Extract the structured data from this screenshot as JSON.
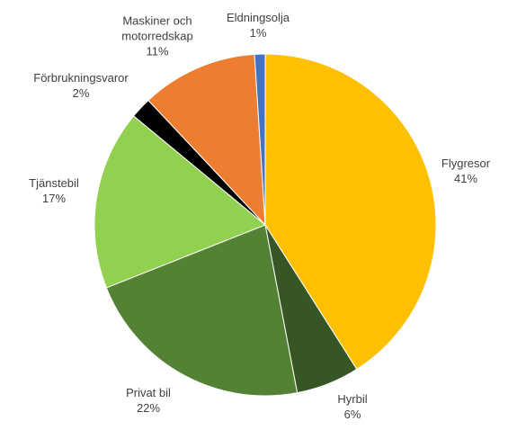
{
  "chart_data": {
    "type": "pie",
    "categories": [
      "Flygresor",
      "Hyrbil",
      "Privat bil",
      "Tjänstebil",
      "Förbrukningsvaror",
      "Maskiner och motorredskap",
      "Eldningsolja"
    ],
    "values": [
      41,
      6,
      22,
      17,
      2,
      11,
      1
    ],
    "value_labels": [
      "41%",
      "6%",
      "22%",
      "17%",
      "2%",
      "11%",
      "1%"
    ],
    "colors": [
      "#ffc000",
      "#375623",
      "#548235",
      "#92d050",
      "#000000",
      "#ed7d31",
      "#4472c4"
    ]
  }
}
